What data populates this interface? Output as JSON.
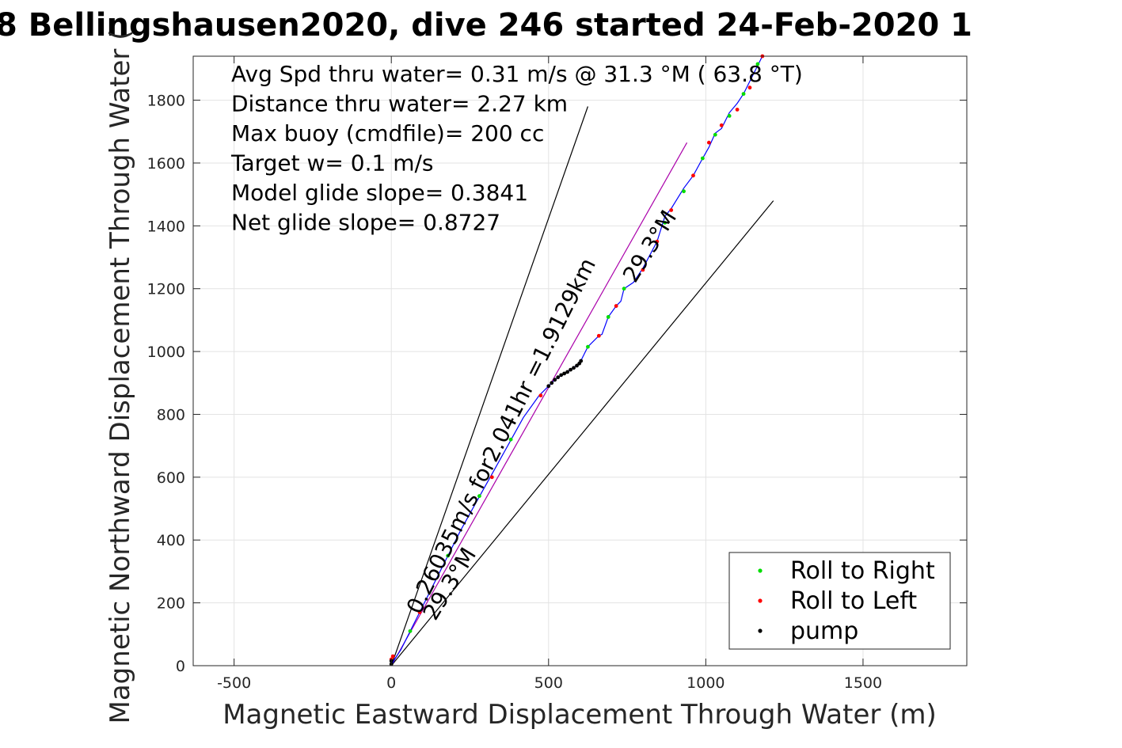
{
  "chart_data": {
    "type": "scatter",
    "title": "8 Bellingshausen2020, dive 246 started 24-Feb-2020 1",
    "xlabel": "Magnetic Eastward Displacement Through Water (m)",
    "ylabel": "Magnetic Northward Displacement Through Water (",
    "xlim": [
      -630,
      1830
    ],
    "ylim": [
      0,
      1940
    ],
    "x_ticks": [
      -500,
      0,
      500,
      1000,
      1500
    ],
    "y_ticks": [
      0,
      200,
      400,
      600,
      800,
      1000,
      1200,
      1400,
      1600,
      1800
    ],
    "grid": true,
    "legend_position": "bottom-right",
    "annotations": [
      "Avg Spd thru water=  0.31 m/s @  31.3 °M ( 63.8 °T)",
      "Distance thru water=  2.27 km",
      "Max buoy (cmdfile)= 200 cc",
      "Target w= 0.1 m/s",
      "Model glide slope= 0.3841",
      "Net glide slope= 0.8727"
    ],
    "rotated_labels": [
      {
        "text": "0.26035m/s for2.041hr =1.9129km",
        "at": [
          90,
          160
        ],
        "to": [
          830,
          1640
        ]
      },
      {
        "text": "29.3°M",
        "at": [
          140,
          140
        ],
        "to": [
          310,
          420
        ]
      },
      {
        "text": "29.3°M",
        "at": [
          775,
          1215
        ],
        "to": [
          940,
          1480
        ]
      }
    ],
    "reference_lines": [
      {
        "name": "left bound",
        "color": "#000000",
        "from": [
          0,
          0
        ],
        "to": [
          625,
          1780
        ]
      },
      {
        "name": "right bound",
        "color": "#000000",
        "from": [
          0,
          0
        ],
        "to": [
          1215,
          1480
        ]
      },
      {
        "name": "mean track",
        "color": "#aa00aa",
        "from": [
          0,
          0
        ],
        "to": [
          940,
          1665
        ]
      }
    ],
    "track": {
      "color": "#0000ff",
      "points": [
        [
          0,
          0
        ],
        [
          10,
          20
        ],
        [
          30,
          50
        ],
        [
          55,
          100
        ],
        [
          85,
          160
        ],
        [
          120,
          230
        ],
        [
          170,
          330
        ],
        [
          220,
          430
        ],
        [
          270,
          520
        ],
        [
          320,
          610
        ],
        [
          370,
          700
        ],
        [
          420,
          790
        ],
        [
          470,
          860
        ],
        [
          500,
          890
        ],
        [
          520,
          910
        ],
        [
          550,
          930
        ],
        [
          575,
          945
        ],
        [
          595,
          960
        ],
        [
          605,
          975
        ],
        [
          625,
          1015
        ],
        [
          660,
          1050
        ],
        [
          670,
          1055
        ],
        [
          690,
          1110
        ],
        [
          715,
          1145
        ],
        [
          730,
          1160
        ],
        [
          740,
          1200
        ],
        [
          770,
          1220
        ],
        [
          800,
          1265
        ],
        [
          845,
          1350
        ],
        [
          870,
          1430
        ],
        [
          890,
          1455
        ],
        [
          930,
          1520
        ],
        [
          960,
          1560
        ],
        [
          990,
          1615
        ],
        [
          1010,
          1650
        ],
        [
          1030,
          1695
        ],
        [
          1050,
          1710
        ],
        [
          1075,
          1760
        ],
        [
          1100,
          1790
        ],
        [
          1120,
          1820
        ],
        [
          1150,
          1880
        ],
        [
          1180,
          1940
        ]
      ]
    },
    "series": [
      {
        "name": "Roll to Right",
        "color": "#00dd00",
        "points": [
          [
            60,
            110
          ],
          [
            180,
            350
          ],
          [
            280,
            540
          ],
          [
            380,
            720
          ],
          [
            625,
            1015
          ],
          [
            690,
            1110
          ],
          [
            740,
            1200
          ],
          [
            870,
            1410
          ],
          [
            930,
            1510
          ],
          [
            990,
            1615
          ],
          [
            1030,
            1690
          ],
          [
            1075,
            1750
          ],
          [
            1120,
            1820
          ],
          [
            1165,
            1915
          ]
        ]
      },
      {
        "name": "Roll to Left",
        "color": "#ff0000",
        "points": [
          [
            0,
            20
          ],
          [
            5,
            30
          ],
          [
            90,
            170
          ],
          [
            320,
            600
          ],
          [
            475,
            860
          ],
          [
            660,
            1050
          ],
          [
            715,
            1145
          ],
          [
            800,
            1260
          ],
          [
            845,
            1350
          ],
          [
            890,
            1450
          ],
          [
            960,
            1560
          ],
          [
            1010,
            1665
          ],
          [
            1050,
            1720
          ],
          [
            1100,
            1770
          ],
          [
            1140,
            1840
          ],
          [
            1180,
            1940
          ]
        ]
      },
      {
        "name": "pump",
        "color": "#000000",
        "points": [
          [
            0,
            5
          ],
          [
            0,
            15
          ],
          [
            500,
            890
          ],
          [
            510,
            900
          ],
          [
            520,
            910
          ],
          [
            530,
            918
          ],
          [
            540,
            925
          ],
          [
            550,
            930
          ],
          [
            560,
            935
          ],
          [
            570,
            942
          ],
          [
            580,
            948
          ],
          [
            590,
            955
          ],
          [
            598,
            962
          ],
          [
            603,
            970
          ]
        ]
      }
    ]
  }
}
